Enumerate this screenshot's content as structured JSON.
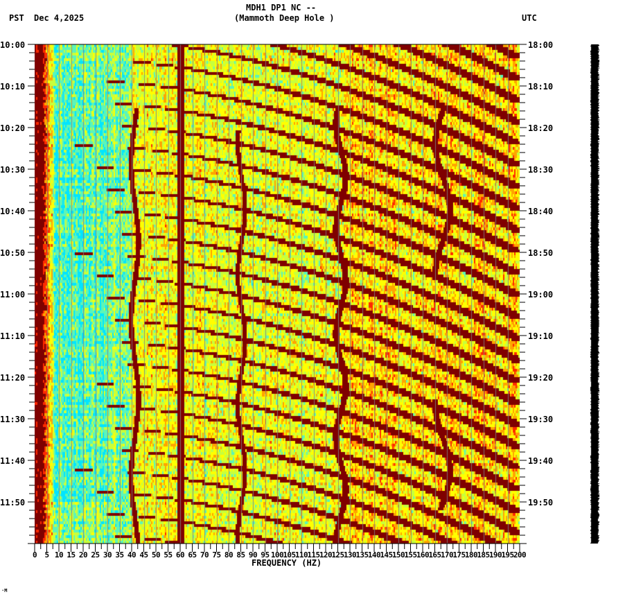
{
  "header": {
    "station_line": "MDH1 DP1 NC --",
    "location_line": "(Mammoth Deep Hole )",
    "left_timezone": "PST",
    "date": "Dec 4,2025",
    "right_timezone": "UTC"
  },
  "footer_mark": "·M",
  "chart_data": {
    "type": "heatmap",
    "title": "MDH1 DP1 NC -- (Mammoth Deep Hole )",
    "subtitle": "Dec 4,2025",
    "xlabel": "FREQUENCY (HZ)",
    "ylabel_left": "PST",
    "ylabel_right": "UTC",
    "x_range": [
      0,
      200
    ],
    "x_ticks": [
      "0",
      "5",
      "10",
      "15",
      "20",
      "25",
      "30",
      "35",
      "40",
      "45",
      "50",
      "55",
      "60",
      "65",
      "70",
      "75",
      "80",
      "85",
      "90",
      "95",
      "100",
      "105",
      "110",
      "115",
      "120",
      "125",
      "130",
      "135",
      "140",
      "145",
      "150",
      "155",
      "160",
      "165",
      "170",
      "175",
      "180",
      "185",
      "190",
      "195",
      "200"
    ],
    "y_ticks_left": [
      "10:00",
      "10:10",
      "10:20",
      "10:30",
      "10:40",
      "10:50",
      "11:00",
      "11:10",
      "11:20",
      "11:30",
      "11:40",
      "11:50"
    ],
    "y_ticks_right": [
      "18:00",
      "18:10",
      "18:20",
      "18:30",
      "18:40",
      "18:50",
      "19:00",
      "19:10",
      "19:20",
      "19:30",
      "19:40",
      "19:50"
    ],
    "time_range_pst": [
      "10:00",
      "12:00"
    ],
    "colormap": [
      "#00e5ff",
      "#5cf5b8",
      "#c8ff3c",
      "#ffff00",
      "#ffa500",
      "#ff2a00",
      "#7f0000"
    ],
    "features": {
      "constant_line_hz": 60,
      "low_freq_high_energy_hz": [
        0,
        5
      ],
      "chirp_sweeps": "repeated curved high-energy bands sweeping from ~20 Hz to 130+ Hz, period ~5 min",
      "wandering_lines_hz": [
        41,
        85,
        125,
        168
      ],
      "low_energy_region": "cyan/blue 5-40 Hz"
    },
    "grid": true,
    "gridlines_x_hz": [
      5,
      10,
      15,
      20,
      25,
      30,
      35,
      40,
      45,
      50,
      55,
      60,
      65,
      70,
      75,
      80,
      85,
      90,
      95,
      100,
      105,
      110,
      115,
      120,
      125,
      130,
      135,
      140,
      145,
      150,
      155,
      160,
      165,
      170,
      175,
      180,
      185,
      190,
      195
    ]
  }
}
